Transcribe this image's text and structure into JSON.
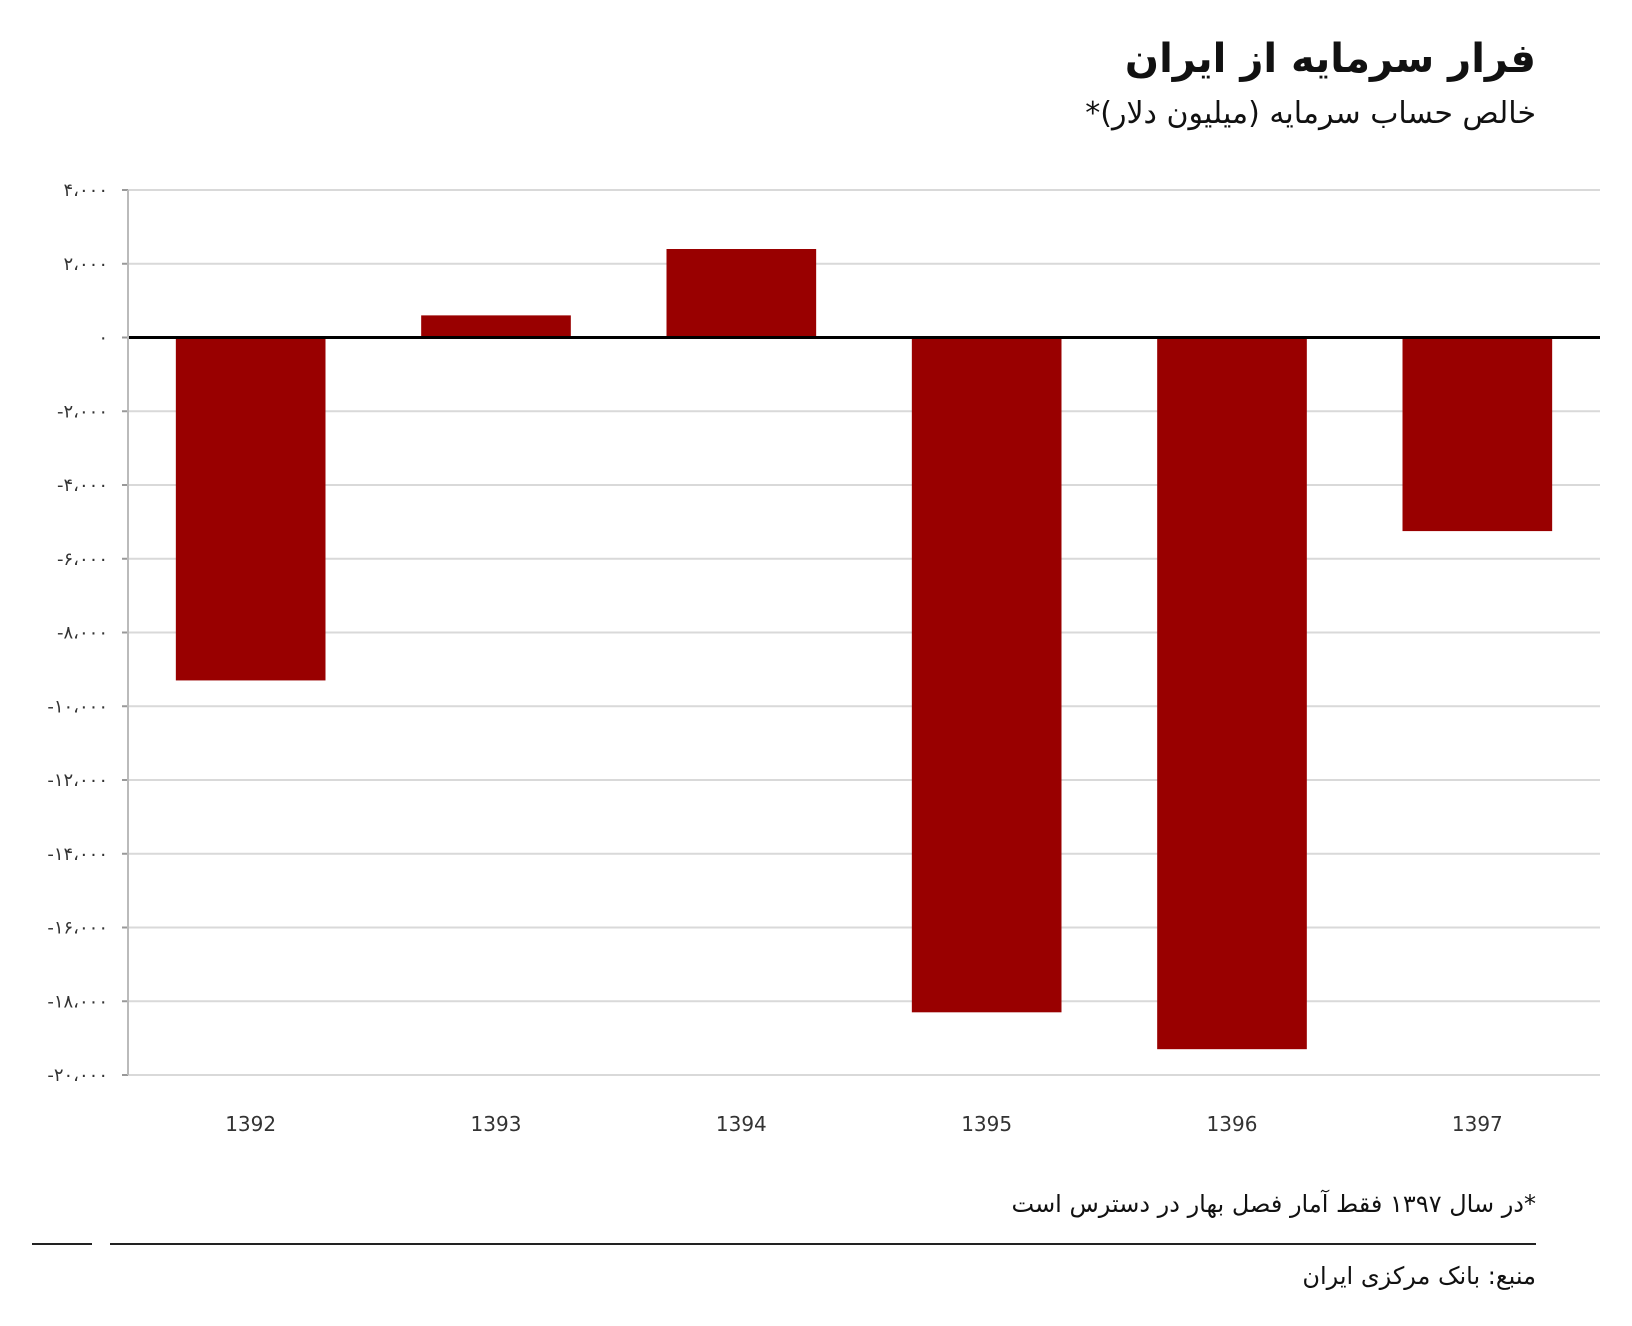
{
  "title": "فرار سرمایه از ایران",
  "subtitle": "خالص حساب سرمایه (میلیون دلار)*",
  "footnote": "*در سال ۱۳۹۷ فقط آمار فصل بهار در دسترس است",
  "source": "منبع: بانک مرکزی ایران",
  "colors": {
    "bar": "#990000",
    "grid": "#d9d9d9",
    "zero_line": "#000000",
    "background": "#ffffff"
  },
  "chart_data": {
    "type": "bar",
    "categories": [
      "1392",
      "1393",
      "1394",
      "1395",
      "1396",
      "1397"
    ],
    "values": [
      -9300,
      600,
      2400,
      -18300,
      -19300,
      -5250
    ],
    "ylim": [
      -20000,
      4000
    ],
    "y_ticks": [
      4000,
      2000,
      0,
      -2000,
      -4000,
      -6000,
      -8000,
      -10000,
      -12000,
      -14000,
      -16000,
      -18000,
      -20000
    ],
    "y_tick_labels": [
      "۴،۰۰۰",
      "۲،۰۰۰",
      "۰",
      "-۲،۰۰۰",
      "-۴،۰۰۰",
      "-۶،۰۰۰",
      "-۸،۰۰۰",
      "-۱۰،۰۰۰",
      "-۱۲،۰۰۰",
      "-۱۴،۰۰۰",
      "-۱۶،۰۰۰",
      "-۱۸،۰۰۰",
      "-۲۰،۰۰۰"
    ],
    "xlabel": "",
    "ylabel": "",
    "grid": true,
    "legend": "none"
  }
}
